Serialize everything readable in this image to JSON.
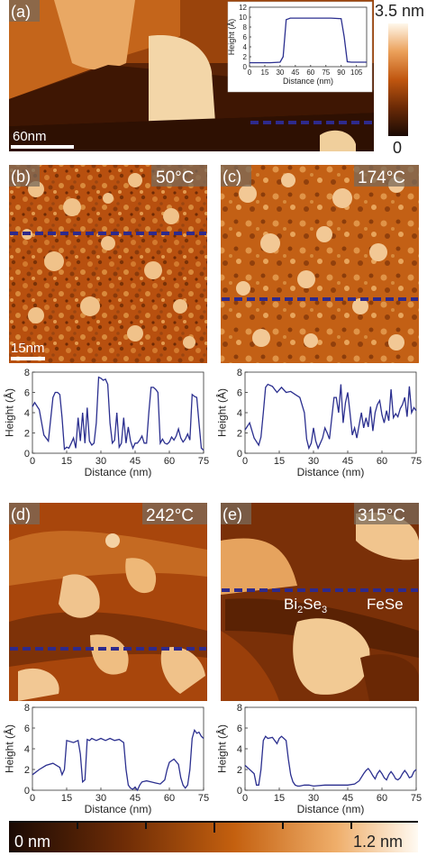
{
  "panels": [
    {
      "id": "a",
      "label": "(a)",
      "temp": "",
      "scale_bar": "60nm"
    },
    {
      "id": "b",
      "label": "(b)",
      "temp": "50°C",
      "scale_bar": "15nm"
    },
    {
      "id": "c",
      "label": "(c)",
      "temp": "174°C",
      "scale_bar": ""
    },
    {
      "id": "d",
      "label": "(d)",
      "temp": "242°C",
      "scale_bar": ""
    },
    {
      "id": "e",
      "label": "(e)",
      "temp": "315°C",
      "scale_bar": ""
    }
  ],
  "annotations": {
    "bi2se3_base": "Bi",
    "bi2se3_sub1": "2",
    "bi2se3_mid": "Se",
    "bi2se3_sub2": "3",
    "fese": "FeSe"
  },
  "colorbar_a": {
    "max_label": "3.5 nm",
    "min_label": "0"
  },
  "colorbar_bottom": {
    "min_label": "0 nm",
    "max_label": "1.2 nm"
  },
  "profile_colors": {
    "line": "#2b2f8f",
    "dash": "#2e2a8c"
  },
  "chart_data": [
    {
      "id": "profile-a",
      "type": "line",
      "xlabel": "Distance (nm)",
      "ylabel": "Height (Å)",
      "xlim": [
        0,
        115
      ],
      "ylim": [
        0,
        12
      ],
      "xticks": [
        0,
        15,
        30,
        45,
        60,
        75,
        90,
        105
      ],
      "yticks": [
        0,
        2,
        4,
        6,
        8,
        10,
        12
      ],
      "x": [
        0,
        10,
        20,
        30,
        33,
        36,
        40,
        50,
        60,
        70,
        80,
        90,
        93,
        96,
        100,
        110,
        115
      ],
      "y": [
        0.8,
        0.8,
        0.8,
        0.9,
        2,
        9.5,
        9.8,
        9.8,
        9.8,
        9.8,
        9.8,
        9.7,
        6,
        1,
        0.9,
        0.9,
        0.9
      ]
    },
    {
      "id": "profile-b",
      "type": "line",
      "xlabel": "Distance (nm)",
      "ylabel": "Height (Å)",
      "xlim": [
        0,
        75
      ],
      "ylim": [
        0,
        8
      ],
      "xticks": [
        0,
        15,
        30,
        45,
        60,
        75
      ],
      "yticks": [
        0,
        2,
        4,
        6,
        8
      ],
      "x": [
        0,
        1,
        3,
        5,
        7,
        9,
        10,
        11,
        12,
        13,
        14,
        15,
        16,
        17,
        18,
        19,
        20,
        21,
        22,
        23,
        24,
        25,
        26,
        27,
        28,
        29,
        30,
        31,
        32,
        33,
        34,
        35,
        36,
        37,
        38,
        39,
        40,
        41,
        42,
        43,
        44,
        45,
        46,
        47,
        48,
        49,
        50,
        51,
        52,
        53,
        54,
        55,
        56,
        57,
        58,
        59,
        60,
        61,
        62,
        63,
        64,
        65,
        66,
        67,
        68,
        69,
        70,
        71,
        72,
        73,
        74,
        75
      ],
      "y": [
        4.6,
        5.0,
        4.3,
        1.8,
        1.2,
        5.5,
        6.0,
        6.0,
        5.8,
        3.5,
        0.4,
        0.6,
        0.5,
        1.0,
        1.5,
        0.5,
        3.5,
        1.2,
        4.0,
        1.0,
        4.5,
        1.2,
        0.8,
        1.0,
        3.0,
        7.5,
        7.4,
        7.2,
        7.3,
        6.8,
        3.0,
        1.0,
        1.3,
        4.0,
        0.6,
        1.0,
        3.5,
        1.0,
        2.6,
        1.2,
        0.5,
        1.0,
        1.0,
        1.3,
        1.7,
        1.0,
        1.0,
        4.0,
        6.5,
        6.5,
        6.3,
        6.0,
        1.0,
        1.4,
        1.0,
        0.9,
        1.1,
        1.6,
        1.3,
        1.7,
        2.4,
        1.5,
        1.1,
        1.4,
        1.9,
        1.3,
        5.8,
        5.6,
        5.5,
        3.0,
        0.5,
        0.3
      ]
    },
    {
      "id": "profile-c",
      "type": "line",
      "xlabel": "Distance (nm)",
      "ylabel": "Height (Å)",
      "xlim": [
        0,
        75
      ],
      "ylim": [
        0,
        8
      ],
      "xticks": [
        0,
        15,
        30,
        45,
        60,
        75
      ],
      "yticks": [
        0,
        2,
        4,
        6,
        8
      ],
      "x": [
        0,
        2,
        4,
        6,
        7,
        8,
        9,
        10,
        12,
        14,
        16,
        18,
        20,
        22,
        24,
        26,
        27,
        28,
        29,
        30,
        31,
        32,
        33,
        34,
        35,
        36,
        37,
        38,
        39,
        40,
        41,
        42,
        43,
        44,
        45,
        46,
        47,
        48,
        49,
        50,
        51,
        52,
        53,
        54,
        55,
        56,
        57,
        58,
        59,
        60,
        61,
        62,
        63,
        64,
        65,
        66,
        67,
        68,
        69,
        70,
        71,
        72,
        73,
        74,
        75
      ],
      "y": [
        2.3,
        3.0,
        1.5,
        0.8,
        1.6,
        4.0,
        6.5,
        6.8,
        6.6,
        6.0,
        6.5,
        6.0,
        6.1,
        5.8,
        5.5,
        4.0,
        1.4,
        0.5,
        1.0,
        2.5,
        1.2,
        0.5,
        1.0,
        1.5,
        2.5,
        2.0,
        1.4,
        3.5,
        5.5,
        5.5,
        4.0,
        6.8,
        3.0,
        5.0,
        6.0,
        4.0,
        1.8,
        2.5,
        1.5,
        2.8,
        4.0,
        2.5,
        3.5,
        2.6,
        4.6,
        2.2,
        4.0,
        4.8,
        5.2,
        3.8,
        3.0,
        4.2,
        3.2,
        6.3,
        3.5,
        3.9,
        3.6,
        4.4,
        4.8,
        5.5,
        3.6,
        6.6,
        4.0,
        4.5,
        4.2
      ]
    },
    {
      "id": "profile-d",
      "type": "line",
      "xlabel": "Distance (nm)",
      "ylabel": "Height (Å)",
      "xlim": [
        0,
        75
      ],
      "ylim": [
        0,
        8
      ],
      "xticks": [
        0,
        15,
        30,
        45,
        60,
        75
      ],
      "yticks": [
        0,
        2,
        4,
        6,
        8
      ],
      "x": [
        0,
        3,
        6,
        9,
        12,
        13,
        14,
        15,
        18,
        20,
        21,
        22,
        23,
        24,
        25,
        26,
        28,
        30,
        32,
        34,
        36,
        38,
        40,
        41,
        42,
        43,
        44,
        45,
        46,
        47,
        48,
        50,
        52,
        54,
        56,
        58,
        59,
        60,
        62,
        64,
        65,
        66,
        67,
        68,
        69,
        70,
        71,
        72,
        73,
        74,
        75
      ],
      "y": [
        1.5,
        2.0,
        2.4,
        2.6,
        2.2,
        1.5,
        2.0,
        4.8,
        4.6,
        4.8,
        3.5,
        0.8,
        1.0,
        4.9,
        4.8,
        5.0,
        4.8,
        5.0,
        4.8,
        5.0,
        4.8,
        4.9,
        4.6,
        2.0,
        0.5,
        0.2,
        0.1,
        0.3,
        0.0,
        0.5,
        0.8,
        0.9,
        0.8,
        0.7,
        0.6,
        1.0,
        2.0,
        2.7,
        3.0,
        2.5,
        1.2,
        0.5,
        0.2,
        0.5,
        2.0,
        5.0,
        5.8,
        5.5,
        5.6,
        5.2,
        5.0
      ]
    },
    {
      "id": "profile-e",
      "type": "line",
      "xlabel": "Distance (nm)",
      "ylabel": "Height (Å)",
      "xlim": [
        0,
        75
      ],
      "ylim": [
        0,
        8
      ],
      "xticks": [
        0,
        15,
        30,
        45,
        60,
        75
      ],
      "yticks": [
        0,
        2,
        4,
        6,
        8
      ],
      "x": [
        0,
        2,
        4,
        5,
        6,
        7,
        8,
        9,
        10,
        12,
        14,
        15,
        16,
        17,
        18,
        19,
        20,
        21,
        22,
        23,
        24,
        26,
        28,
        30,
        35,
        40,
        45,
        48,
        50,
        52,
        53,
        54,
        55,
        56,
        57,
        58,
        59,
        60,
        61,
        62,
        63,
        64,
        65,
        66,
        67,
        68,
        69,
        70,
        71,
        72,
        73,
        74,
        75
      ],
      "y": [
        2.4,
        2.0,
        1.6,
        0.5,
        0.5,
        2.0,
        4.8,
        5.2,
        5.0,
        5.1,
        4.5,
        5.0,
        5.2,
        5.0,
        4.8,
        3.0,
        1.5,
        0.8,
        0.5,
        0.4,
        0.4,
        0.5,
        0.5,
        0.4,
        0.5,
        0.5,
        0.5,
        0.6,
        0.9,
        1.6,
        1.9,
        2.1,
        1.8,
        1.4,
        1.1,
        1.6,
        1.9,
        1.6,
        1.2,
        1.0,
        1.5,
        1.8,
        1.5,
        1.1,
        1.0,
        1.2,
        1.6,
        1.9,
        1.6,
        1.2,
        1.3,
        1.8,
        2.0
      ]
    }
  ]
}
